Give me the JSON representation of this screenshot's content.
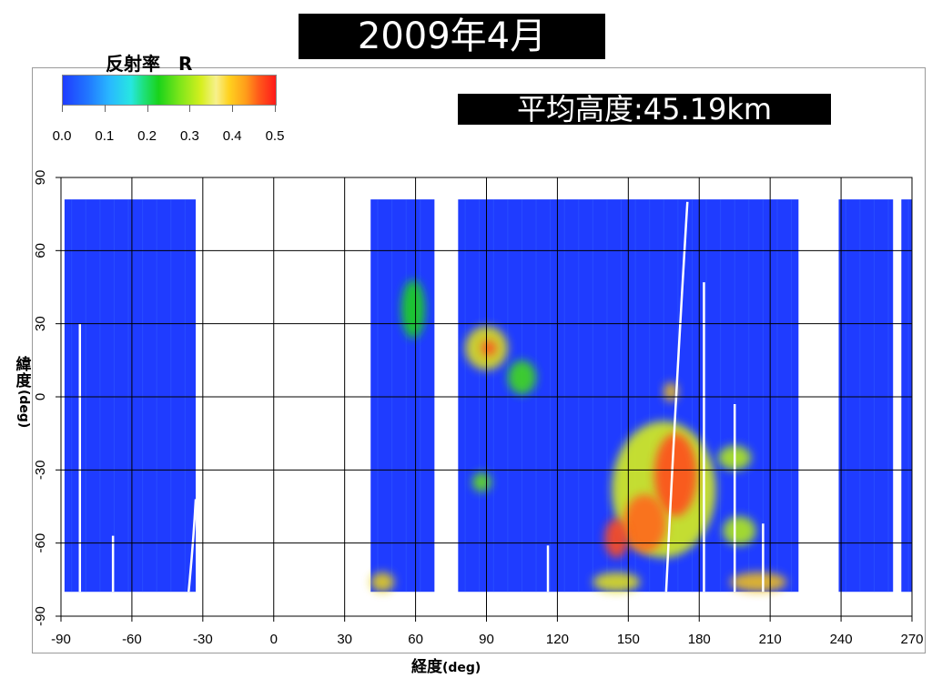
{
  "header": {
    "title": "2009年4月"
  },
  "colorbar": {
    "label": "反射率　R",
    "ticks": [
      "0.0",
      "0.1",
      "0.2",
      "0.3",
      "0.4",
      "0.5"
    ],
    "range": [
      0.0,
      0.5
    ],
    "colors": [
      "#1f3cff",
      "#29b8ff",
      "#1ad31a",
      "#d6ef1f",
      "#ff9c1a",
      "#ff1a1a"
    ]
  },
  "mean_altitude": {
    "text": "平均高度:45.19km"
  },
  "chart_data": {
    "type": "heatmap",
    "xlabel_main": "経度",
    "xlabel_unit": "(deg)",
    "ylabel_main": "緯度",
    "ylabel_unit": "(deg)",
    "xlim": [
      -90,
      270
    ],
    "ylim": [
      -90,
      90
    ],
    "xticks": [
      -90,
      -60,
      -30,
      0,
      30,
      60,
      90,
      120,
      150,
      180,
      210,
      240,
      270
    ],
    "yticks": [
      90,
      60,
      30,
      0,
      -30,
      -60,
      -90
    ],
    "grid": true,
    "base_color": "#1f3cff",
    "observed_lat_range": [
      -80,
      81
    ],
    "swaths": [
      {
        "lon": [
          -88.5,
          -33
        ]
      },
      {
        "lon": [
          41,
          68
        ]
      },
      {
        "lon": [
          78,
          222
        ]
      },
      {
        "lon": [
          239,
          262
        ]
      },
      {
        "lon": [
          265.5,
          270
        ]
      }
    ],
    "patches": [
      {
        "lon": 90,
        "lat": 20,
        "rlon": 9,
        "rlat": 9,
        "value": 0.32
      },
      {
        "lon": 91,
        "lat": 20,
        "rlon": 3,
        "rlat": 3,
        "value": 0.46
      },
      {
        "lon": 105,
        "lat": 8,
        "rlon": 6,
        "rlat": 7,
        "value": 0.22
      },
      {
        "lon": 88,
        "lat": -35,
        "rlon": 4,
        "rlat": 4,
        "value": 0.24
      },
      {
        "lon": 165,
        "lat": -38,
        "rlon": 22,
        "rlat": 28,
        "value": 0.3
      },
      {
        "lon": 170,
        "lat": -32,
        "rlon": 9,
        "rlat": 17,
        "value": 0.46
      },
      {
        "lon": 157,
        "lat": -52,
        "rlon": 9,
        "rlat": 12,
        "value": 0.44
      },
      {
        "lon": 168,
        "lat": 2,
        "rlon": 3,
        "rlat": 4,
        "value": 0.36
      },
      {
        "lon": 195,
        "lat": -25,
        "rlon": 7,
        "rlat": 5,
        "value": 0.28
      },
      {
        "lon": 197,
        "lat": -55,
        "rlon": 7,
        "rlat": 6,
        "value": 0.28
      },
      {
        "lon": 205,
        "lat": -76,
        "rlon": 12,
        "rlat": 4,
        "value": 0.36
      },
      {
        "lon": 145,
        "lat": -76,
        "rlon": 10,
        "rlat": 4,
        "value": 0.32
      },
      {
        "lon": 46,
        "lat": -76,
        "rlon": 5,
        "rlat": 4,
        "value": 0.34
      },
      {
        "lon": 59,
        "lat": 36,
        "rlon": 5,
        "rlat": 12,
        "value": 0.2
      },
      {
        "lon": 145,
        "lat": -58,
        "rlon": 5,
        "rlat": 8,
        "value": 0.46
      }
    ],
    "gap_lines": [
      {
        "lon": -82,
        "lat": [
          -80,
          30
        ]
      },
      {
        "lon": -68,
        "lat": [
          -80,
          -57
        ]
      },
      {
        "lon": 116,
        "lat": [
          -80,
          -61
        ]
      },
      {
        "lon": 182,
        "lat": [
          -80,
          47
        ]
      },
      {
        "lon": 195,
        "lat": [
          -80,
          -3
        ]
      },
      {
        "lon": 207,
        "lat": [
          -80,
          -52
        ]
      }
    ],
    "gap_curves": [
      {
        "points": [
          [
            166,
            -80
          ],
          [
            170,
            0
          ],
          [
            175,
            80
          ]
        ]
      },
      {
        "points": [
          [
            -36,
            -80
          ],
          [
            -34,
            -60
          ],
          [
            -33,
            -42
          ]
        ]
      }
    ]
  }
}
